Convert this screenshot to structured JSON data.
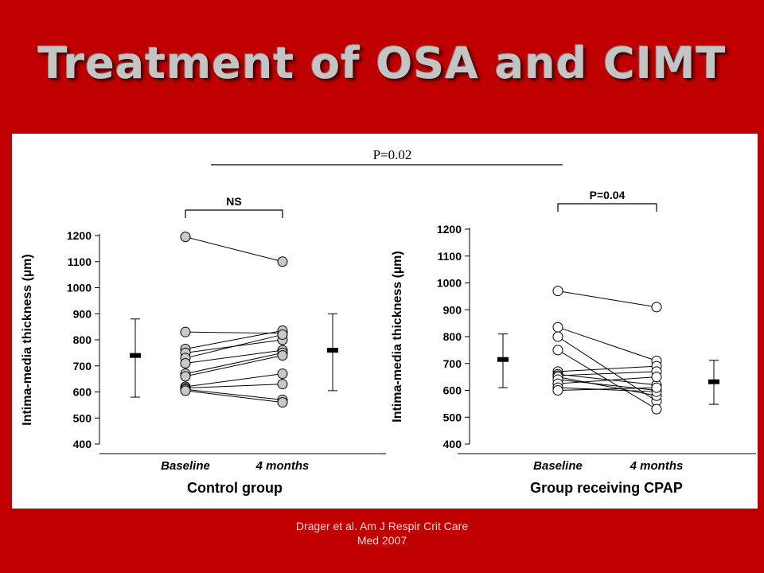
{
  "slide": {
    "title": "Treatment of OSA and CIMT",
    "citation_line1": "Drager et al.  Am J Respir Crit Care",
    "citation_line2": "Med 2007"
  },
  "comparison": {
    "label": "P=0.02"
  },
  "chart_data": [
    {
      "type": "line",
      "title": "Control group",
      "ylabel": "Intima-media thickness (µm)",
      "categories": [
        "Baseline",
        "4 months"
      ],
      "ylim": [
        400,
        1200
      ],
      "yticks": [
        "400",
        "500",
        "600",
        "700",
        "800",
        "900",
        "1000",
        "1100",
        "1200"
      ],
      "bracket_label": "NS",
      "pairs": [
        [
          1195,
          1100
        ],
        [
          830,
          825
        ],
        [
          765,
          835
        ],
        [
          750,
          800
        ],
        [
          730,
          820
        ],
        [
          710,
          760
        ],
        [
          670,
          750
        ],
        [
          660,
          740
        ],
        [
          620,
          670
        ],
        [
          615,
          630
        ],
        [
          610,
          570
        ],
        [
          605,
          560
        ]
      ],
      "summary": {
        "baseline": {
          "mean": 740,
          "low": 580,
          "high": 880
        },
        "followup": {
          "mean": 760,
          "low": 605,
          "high": 900
        }
      }
    },
    {
      "type": "line",
      "title": "Group receiving CPAP",
      "ylabel": "Intima-media thickness (µm)",
      "categories": [
        "Baseline",
        "4 months"
      ],
      "ylim": [
        400,
        1200
      ],
      "yticks": [
        "400",
        "500",
        "600",
        "700",
        "800",
        "900",
        "1000",
        "1100",
        "1200"
      ],
      "bracket_label": "P=0.04",
      "pairs": [
        [
          970,
          910
        ],
        [
          835,
          710
        ],
        [
          800,
          560
        ],
        [
          750,
          530
        ],
        [
          670,
          690
        ],
        [
          660,
          620
        ],
        [
          655,
          670
        ],
        [
          650,
          580
        ],
        [
          640,
          600
        ],
        [
          625,
          650
        ],
        [
          610,
          595
        ],
        [
          600,
          610
        ]
      ],
      "summary": {
        "baseline": {
          "mean": 715,
          "low": 610,
          "high": 810
        },
        "followup": {
          "mean": 632,
          "low": 548,
          "high": 712
        }
      }
    }
  ]
}
